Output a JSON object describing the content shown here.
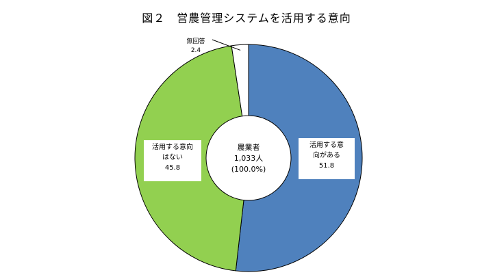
{
  "chart_data": {
    "type": "pie",
    "style": "donut",
    "title": "図２　営農管理システムを活用する意向",
    "center_label": [
      "農業者",
      "1,033人",
      "(100.0%)"
    ],
    "slices": [
      {
        "name": "活用する意向がある",
        "label_lines": [
          "活用する意",
          "向がある"
        ],
        "value": 51.8,
        "value_text": "51.8",
        "color": "#4f81bd"
      },
      {
        "name": "活用する意向はない",
        "label_lines": [
          "活用する意向",
          "はない"
        ],
        "value": 45.8,
        "value_text": "45.8",
        "color": "#92d050"
      },
      {
        "name": "無回答",
        "label_lines": [
          "無回答"
        ],
        "value": 2.4,
        "value_text": "2.4",
        "color": "#ffffff"
      }
    ]
  }
}
